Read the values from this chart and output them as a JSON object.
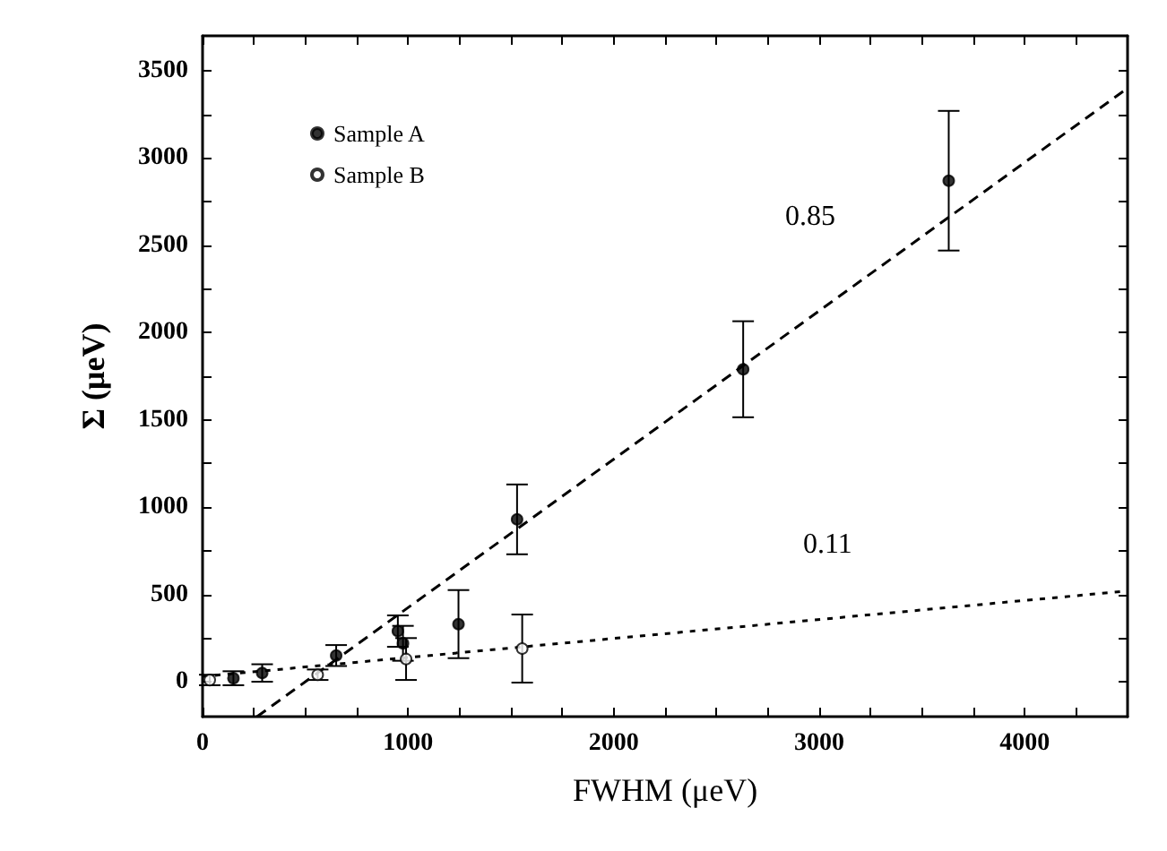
{
  "chart_data": {
    "type": "scatter",
    "xlabel": "FWHM (μeV)",
    "ylabel": "Σ (μeV)",
    "xlim": [
      0,
      4500
    ],
    "ylim": [
      -200,
      3700
    ],
    "xticks": [
      0,
      {
        "value": 250,
        "label": null
      },
      {
        "value": 500,
        "label": null
      },
      {
        "value": 750,
        "label": null
      },
      1000,
      {
        "value": 1250,
        "label": null
      },
      {
        "value": 1500,
        "label": null
      },
      {
        "value": 1750,
        "label": null
      },
      2000,
      {
        "value": 2250,
        "label": null
      },
      {
        "value": 2500,
        "label": null
      },
      {
        "value": 2750,
        "label": null
      },
      3000,
      {
        "value": 3250,
        "label": null
      },
      {
        "value": 3500,
        "label": null
      },
      {
        "value": 3750,
        "label": null
      },
      4000,
      {
        "value": 4250,
        "label": null
      }
    ],
    "yticks": [
      0,
      {
        "value": 250,
        "label": null
      },
      500,
      {
        "value": 750,
        "label": null
      },
      1000,
      {
        "value": 1250,
        "label": null
      },
      1500,
      {
        "value": 1750,
        "label": null
      },
      2000,
      {
        "value": 2250,
        "label": null
      },
      2500,
      {
        "value": 2750,
        "label": null
      },
      3000,
      {
        "value": 3250,
        "label": null
      },
      3500
    ],
    "legend": "top left",
    "grid": false,
    "series": [
      {
        "name": "Sample A",
        "color": "#000000",
        "marker": "circle",
        "x": [
          150,
          290,
          650,
          950,
          975,
          1245,
          1530,
          2630,
          3630
        ],
        "values": [
          20,
          50,
          150,
          290,
          220,
          330,
          930,
          1790,
          2870
        ],
        "errors": [
          40,
          50,
          60,
          90,
          100,
          195,
          200,
          275,
          400
        ]
      },
      {
        "name": "Sample B",
        "color": "#ffffff",
        "marker": "circle",
        "x": [
          35,
          560,
          990,
          1555
        ],
        "values": [
          10,
          40,
          130,
          190
        ],
        "errors": [
          30,
          30,
          120,
          195
        ]
      },
      {
        "type": "line",
        "color": "#000000",
        "line_style": "dashed",
        "marker": "none",
        "x": [
          265,
          4500
        ],
        "values": [
          -200,
          3400
        ]
      },
      {
        "type": "line",
        "color": "#000000",
        "line_style": "dotted",
        "marker": "none",
        "x": [
          0,
          4500
        ],
        "values": [
          30,
          520
        ]
      }
    ],
    "annotations": [
      "0.85",
      "0.11"
    ]
  }
}
